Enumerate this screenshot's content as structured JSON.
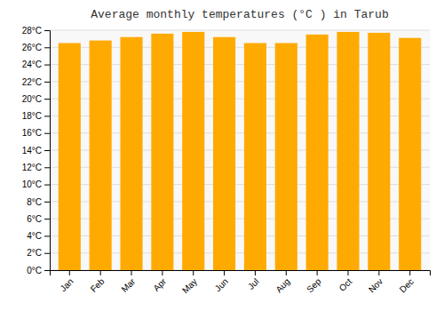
{
  "chart_data": {
    "type": "bar",
    "title": "Average monthly temperatures (°C ) in Tarub",
    "categories": [
      "Jan",
      "Feb",
      "Mar",
      "Apr",
      "May",
      "Jun",
      "Jul",
      "Aug",
      "Sep",
      "Oct",
      "Nov",
      "Dec"
    ],
    "values": [
      26.5,
      26.8,
      27.2,
      27.6,
      27.8,
      27.2,
      26.5,
      26.5,
      27.5,
      27.8,
      27.7,
      27.1
    ],
    "color": "#FFAA00",
    "ylim": [
      0,
      28
    ],
    "yticks": [
      {
        "value": 0,
        "label": "0°C"
      },
      {
        "value": 2,
        "label": "2°C"
      },
      {
        "value": 4,
        "label": "4°C"
      },
      {
        "value": 6,
        "label": "6°C"
      },
      {
        "value": 8,
        "label": "8°C"
      },
      {
        "value": 10,
        "label": "10°C"
      },
      {
        "value": 12,
        "label": "12°C"
      },
      {
        "value": 14,
        "label": "14°C"
      },
      {
        "value": 16,
        "label": "16°C"
      },
      {
        "value": 18,
        "label": "18°C"
      },
      {
        "value": 20,
        "label": "20°C"
      },
      {
        "value": 22,
        "label": "22°C"
      },
      {
        "value": 24,
        "label": "24°C"
      },
      {
        "value": 26,
        "label": "26°C"
      },
      {
        "value": 28,
        "label": "28°C"
      }
    ],
    "grid": true
  }
}
